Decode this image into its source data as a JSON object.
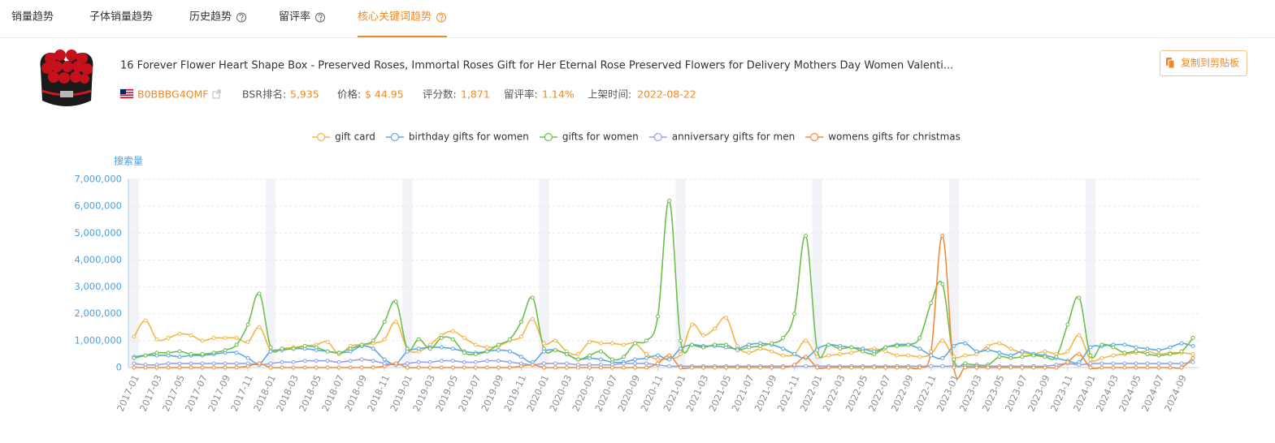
{
  "tabs": [
    "销量趋势",
    "子体销量趋势",
    "历史趋势",
    "留评率",
    "核心关键词趋势"
  ],
  "product": {
    "title": "16 Forever Flower Heart Shape Box - Preserved Roses, Immortal Roses Gift for Her Eternal Rose Preserved Flowers for Delivery Mothers Day Women Valenti...",
    "asin": "B0BBBG4QMF",
    "stats": [
      {
        "label": "BSR排名:",
        "value": "5,935"
      },
      {
        "label": "价格:",
        "value": "$ 44.95"
      },
      {
        "label": "评分数:",
        "value": "1,871"
      },
      {
        "label": "留评率:",
        "value": "1.14%"
      },
      {
        "label": "上架时间:",
        "value": "2022-08-22"
      }
    ]
  },
  "copy_button": "复制到剪贴板",
  "chart_data": {
    "type": "line",
    "smooth": true,
    "y_axis_name": "搜索量",
    "grid": true,
    "categories": [
      "2017-01",
      null,
      "2017-03",
      null,
      "2017-05",
      null,
      "2017-07",
      null,
      "2017-09",
      null,
      "2017-11",
      null,
      "2018-01",
      null,
      "2018-03",
      null,
      "2018-05",
      null,
      "2018-07",
      null,
      "2018-09",
      null,
      "2018-11",
      null,
      "2019-01",
      null,
      "2019-03",
      null,
      "2019-05",
      null,
      "2019-07",
      null,
      "2019-09",
      null,
      "2019-11",
      null,
      "2020-01",
      null,
      "2020-03",
      null,
      "2020-05",
      null,
      "2020-07",
      null,
      "2020-09",
      null,
      "2020-11",
      null,
      "2021-01",
      null,
      "2021-03",
      null,
      "2021-05",
      null,
      "2021-07",
      null,
      "2021-09",
      null,
      "2021-11",
      null,
      "2022-01",
      null,
      "2022-03",
      null,
      "2022-05",
      null,
      "2022-07",
      null,
      "2022-09",
      null,
      "2022-11",
      null,
      "2023-01",
      null,
      "2023-03",
      null,
      "2023-05",
      null,
      "2023-07",
      null,
      "2023-09",
      null,
      "2023-11",
      null,
      "2024-01",
      null,
      "2024-03",
      null,
      "2024-05",
      null,
      "2024-07",
      null,
      "2024-09",
      null
    ],
    "ylim": [
      0,
      7000000
    ],
    "yticks": [
      0,
      {
        "value": 1000000,
        "label": "1,000,000"
      },
      {
        "value": 2000000,
        "label": "2,000,000"
      },
      {
        "value": 3000000,
        "label": "3,000,000"
      },
      {
        "value": 4000000,
        "label": "4,000,000"
      },
      {
        "value": 5000000,
        "label": "5,000,000"
      },
      {
        "value": 6000000,
        "label": "6,000,000"
      },
      {
        "value": 7000000,
        "label": "7,000,000"
      }
    ],
    "series": [
      {
        "name": "gift card",
        "color": "#f5b642",
        "values": [
          1150000,
          1750000,
          1050000,
          1100000,
          1250000,
          1200000,
          1000000,
          1100000,
          1100000,
          1100000,
          950000,
          1500000,
          650000,
          700000,
          750000,
          800000,
          850000,
          950000,
          500000,
          800000,
          850000,
          900000,
          1050000,
          1700000,
          700000,
          600000,
          850000,
          1200000,
          1350000,
          1100000,
          850000,
          750000,
          800000,
          1000000,
          1150000,
          1800000,
          900000,
          1000000,
          600000,
          500000,
          950000,
          900000,
          900000,
          850000,
          900000,
          500000,
          300000,
          350000,
          500000,
          1600000,
          1200000,
          1450000,
          1850000,
          800000,
          550000,
          700000,
          600000,
          450000,
          500000,
          1000000,
          400000,
          450000,
          500000,
          550000,
          650000,
          700000,
          600000,
          450000,
          450000,
          400000,
          500000,
          1000000,
          400000,
          450000,
          500000,
          800000,
          900000,
          700000,
          550000,
          500000,
          600000,
          500000,
          600000,
          1200000,
          300000,
          350000,
          450000,
          500000,
          550000,
          600000,
          500000,
          550000,
          550000,
          500000
        ]
      },
      {
        "name": "birthday gifts for women",
        "color": "#5aa9e6",
        "values": [
          400000,
          450000,
          450000,
          450000,
          400000,
          450000,
          450000,
          500000,
          550000,
          550000,
          350000,
          150000,
          600000,
          650000,
          700000,
          700000,
          650000,
          600000,
          550000,
          600000,
          800000,
          700000,
          300000,
          150000,
          600000,
          700000,
          750000,
          750000,
          700000,
          600000,
          550000,
          600000,
          650000,
          600000,
          400000,
          200000,
          600000,
          650000,
          500000,
          300000,
          350000,
          300000,
          200000,
          200000,
          300000,
          350000,
          450000,
          300000,
          700000,
          850000,
          800000,
          800000,
          750000,
          700000,
          850000,
          900000,
          850000,
          700000,
          500000,
          350000,
          700000,
          850000,
          800000,
          750000,
          700000,
          600000,
          750000,
          850000,
          850000,
          700000,
          450000,
          350000,
          800000,
          900000,
          600000,
          650000,
          550000,
          450000,
          600000,
          500000,
          450000,
          350000,
          250000,
          200000,
          750000,
          800000,
          850000,
          850000,
          750000,
          700000,
          650000,
          750000,
          900000,
          800000
        ]
      },
      {
        "name": "gifts for women",
        "color": "#6cc04a",
        "values": [
          350000,
          450000,
          550000,
          550000,
          600000,
          500000,
          500000,
          550000,
          650000,
          850000,
          1600000,
          2750000,
          750000,
          700000,
          700000,
          800000,
          750000,
          600000,
          550000,
          700000,
          850000,
          1000000,
          1700000,
          2450000,
          700000,
          1050000,
          700000,
          1100000,
          1050000,
          550000,
          500000,
          600000,
          850000,
          1050000,
          1700000,
          2600000,
          700000,
          650000,
          500000,
          300000,
          450000,
          600000,
          300000,
          400000,
          900000,
          1000000,
          1900000,
          6200000,
          1000000,
          850000,
          750000,
          850000,
          850000,
          650000,
          750000,
          800000,
          900000,
          1100000,
          2000000,
          4900000,
          650000,
          850000,
          700000,
          750000,
          600000,
          500000,
          750000,
          800000,
          850000,
          1100000,
          2400000,
          3100000,
          300000,
          150000,
          100000,
          100000,
          400000,
          350000,
          400000,
          450000,
          400000,
          400000,
          1600000,
          2600000,
          450000,
          850000,
          750000,
          550000,
          600000,
          500000,
          450000,
          500000,
          600000,
          1100000
        ]
      },
      {
        "name": "anniversary gifts for men",
        "color": "#8fa3ec",
        "values": [
          150000,
          100000,
          100000,
          150000,
          150000,
          150000,
          150000,
          150000,
          150000,
          150000,
          150000,
          100000,
          150000,
          200000,
          200000,
          250000,
          250000,
          250000,
          200000,
          250000,
          300000,
          250000,
          150000,
          100000,
          150000,
          200000,
          200000,
          250000,
          250000,
          200000,
          200000,
          250000,
          250000,
          200000,
          150000,
          100000,
          150000,
          150000,
          150000,
          100000,
          100000,
          100000,
          100000,
          150000,
          150000,
          150000,
          100000,
          50000,
          50000,
          50000,
          50000,
          50000,
          50000,
          50000,
          50000,
          50000,
          50000,
          50000,
          50000,
          50000,
          50000,
          50000,
          50000,
          50000,
          50000,
          50000,
          50000,
          50000,
          50000,
          50000,
          50000,
          50000,
          50000,
          50000,
          50000,
          50000,
          50000,
          50000,
          50000,
          50000,
          50000,
          100000,
          150000,
          100000,
          150000,
          150000,
          150000,
          150000,
          150000,
          150000,
          150000,
          150000,
          150000,
          200000
        ]
      },
      {
        "name": "womens gifts for christmas",
        "color": "#f08a3c",
        "values": [
          0,
          0,
          0,
          0,
          0,
          0,
          0,
          0,
          0,
          0,
          50000,
          150000,
          0,
          0,
          0,
          0,
          0,
          0,
          0,
          0,
          0,
          0,
          50000,
          150000,
          0,
          0,
          0,
          0,
          0,
          0,
          0,
          0,
          0,
          0,
          50000,
          100000,
          0,
          0,
          0,
          0,
          0,
          0,
          0,
          0,
          0,
          0,
          150000,
          450000,
          0,
          0,
          0,
          0,
          0,
          0,
          0,
          0,
          0,
          0,
          100000,
          400000,
          0,
          0,
          0,
          0,
          0,
          0,
          0,
          0,
          0,
          0,
          600000,
          4900000,
          0,
          0,
          0,
          0,
          0,
          0,
          0,
          0,
          0,
          0,
          200000,
          500000,
          0,
          0,
          0,
          0,
          0,
          0,
          0,
          0,
          0,
          350000
        ]
      }
    ]
  }
}
